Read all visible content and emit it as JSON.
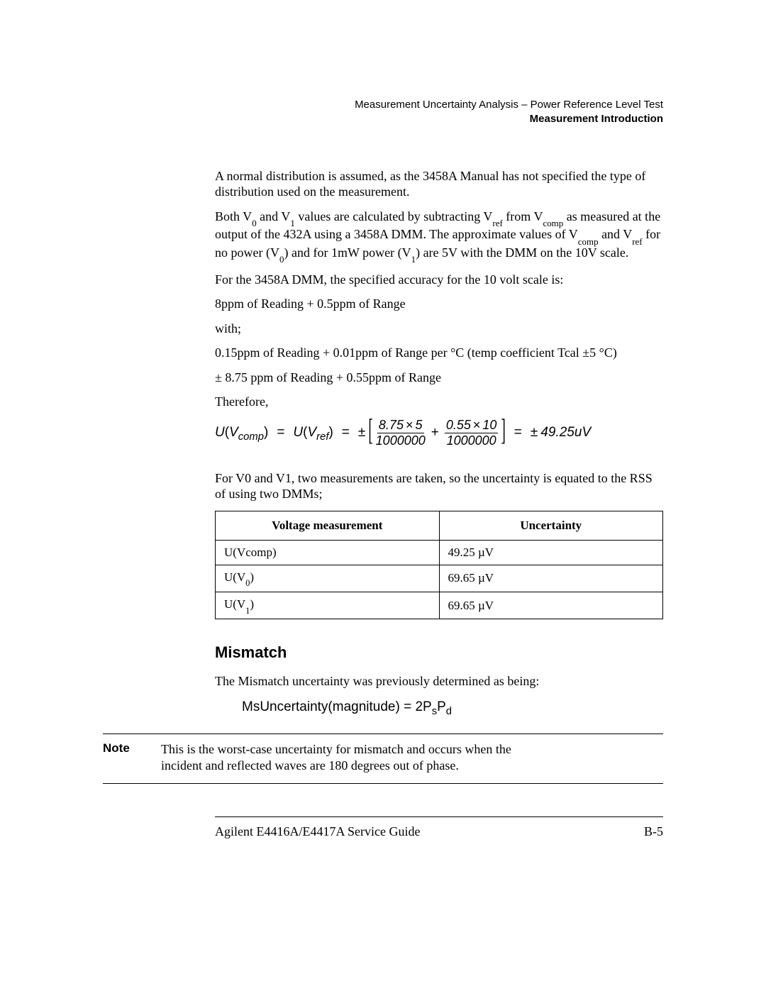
{
  "header": {
    "line1": "Measurement Uncertainty Analysis – Power Reference Level Test",
    "line2": "Measurement Introduction"
  },
  "paragraphs": {
    "p1": "A normal distribution is assumed, as the 3458A Manual has not specified the type of distribution used on the measurement.",
    "p3": "For the 3458A DMM, the specified accuracy for the 10 volt scale is:",
    "p4": "8ppm of Reading + 0.5ppm of Range",
    "p5": "with;",
    "p6": "0.15ppm of Reading + 0.01ppm of Range per °C (temp coefficient Tcal ±5 °C)",
    "p7": "± 8.75 ppm of Reading + 0.55ppm of Range",
    "p8": "Therefore,",
    "p9": "For V0 and V1, two measurements are taken, so the uncertainty is equated to the RSS of using two DMMs;",
    "mismatch_intro": "The Mismatch uncertainty was previously determined as being:"
  },
  "eq1": {
    "num1": "8.75",
    "mul1": "5",
    "den1": "1000000",
    "num2": "0.55",
    "mul2": "10",
    "den2": "1000000",
    "result": "49.25uV"
  },
  "table": {
    "h1": "Voltage measurement",
    "h2": "Uncertainty",
    "rows": [
      {
        "m": "U(Vcomp)",
        "u": "49.25 µV"
      },
      {
        "m": "U(V0)",
        "u": "69.65 µV",
        "sub": "0"
      },
      {
        "m": "U(V1)",
        "u": "69.65 µV",
        "sub": "1"
      }
    ]
  },
  "mismatch_heading": "Mismatch",
  "eq2_text": "MsUncertainty(magnitude) = 2P",
  "note": {
    "label": "Note",
    "text": "This is the worst-case uncertainty for mismatch and occurs when the incident and reflected waves are 180 degrees out of phase."
  },
  "footer": {
    "left": "Agilent E4416A/E4417A Service Guide",
    "right": "B-5"
  }
}
